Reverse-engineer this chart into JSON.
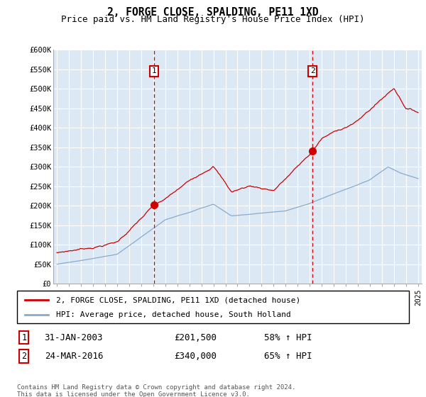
{
  "title": "2, FORGE CLOSE, SPALDING, PE11 1XD",
  "subtitle": "Price paid vs. HM Land Registry's House Price Index (HPI)",
  "ylabel_ticks": [
    "£0",
    "£50K",
    "£100K",
    "£150K",
    "£200K",
    "£250K",
    "£300K",
    "£350K",
    "£400K",
    "£450K",
    "£500K",
    "£550K",
    "£600K"
  ],
  "ylim": [
    0,
    600000
  ],
  "ytick_values": [
    0,
    50000,
    100000,
    150000,
    200000,
    250000,
    300000,
    350000,
    400000,
    450000,
    500000,
    550000,
    600000
  ],
  "xlim_start": 1994.7,
  "xlim_end": 2025.3,
  "plot_bg": "#dce9f5",
  "red_line_color": "#cc0000",
  "blue_line_color": "#88aacc",
  "ann1_x": 2003.08,
  "ann1_y": 201500,
  "ann2_x": 2016.23,
  "ann2_y": 340000,
  "legend_label1": "2, FORGE CLOSE, SPALDING, PE11 1XD (detached house)",
  "legend_label2": "HPI: Average price, detached house, South Holland",
  "table_row1": [
    "1",
    "31-JAN-2003",
    "£201,500",
    "58% ↑ HPI"
  ],
  "table_row2": [
    "2",
    "24-MAR-2016",
    "£340,000",
    "65% ↑ HPI"
  ],
  "footer": "Contains HM Land Registry data © Crown copyright and database right 2024.\nThis data is licensed under the Open Government Licence v3.0."
}
